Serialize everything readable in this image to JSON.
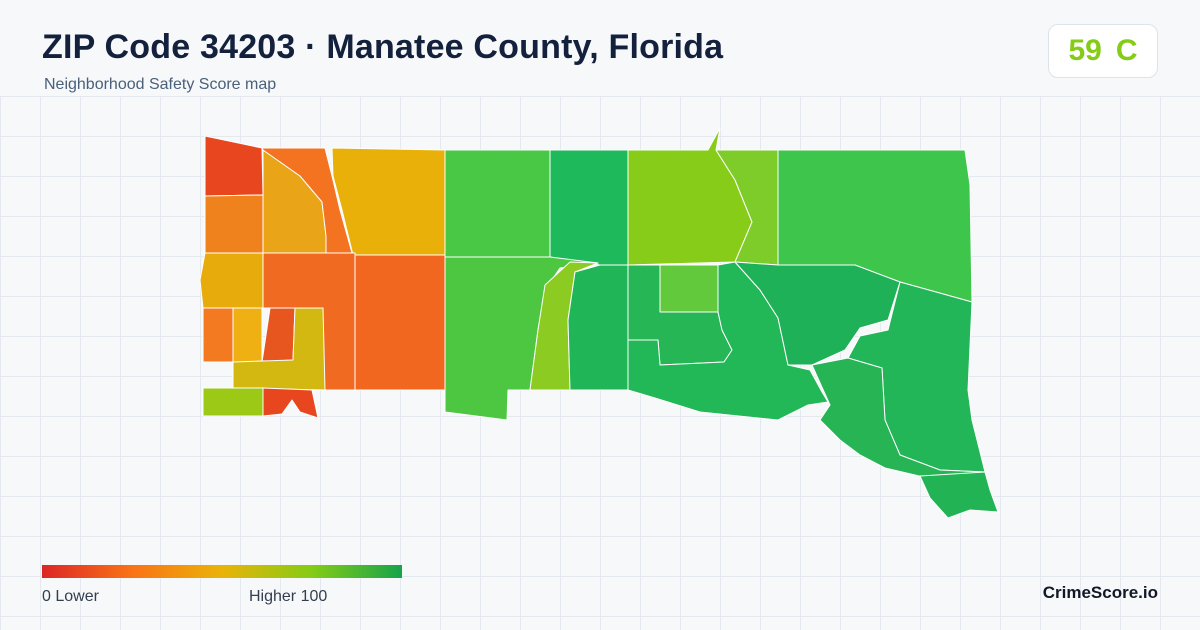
{
  "header": {
    "title": "ZIP Code 34203 · Manatee County, Florida",
    "subtitle": "Neighborhood Safety Score map"
  },
  "score": {
    "value": "59",
    "grade": "C",
    "color": "#84cc16"
  },
  "legend": {
    "min_label": "0  Lower",
    "max_label": "Higher  100",
    "gradient_colors": [
      "#dc2626",
      "#f97316",
      "#eab308",
      "#84cc16",
      "#16a34a"
    ]
  },
  "brand": "CrimeScore.io",
  "map": {
    "stroke_color": "#ffffff",
    "regions": [
      {
        "name": "region-nw-corner",
        "color": "#e8461e"
      },
      {
        "name": "region-west-upper",
        "color": "#f0821e"
      },
      {
        "name": "region-west-upper-inner",
        "color": "#e9a417"
      },
      {
        "name": "region-west-strip",
        "color": "#f47320"
      },
      {
        "name": "region-north-central-west",
        "color": "#e8b008"
      },
      {
        "name": "region-west-mid",
        "color": "#e7ac0c"
      },
      {
        "name": "region-west-lower",
        "color": "#f47a21"
      },
      {
        "name": "region-west-lower-inner",
        "color": "#eeb012"
      },
      {
        "name": "region-central-west",
        "color": "#f06a22"
      },
      {
        "name": "region-central-west-inner",
        "color": "#e8561f"
      },
      {
        "name": "region-central",
        "color": "#f2671f"
      },
      {
        "name": "region-south-ring",
        "color": "#d4b812"
      },
      {
        "name": "region-sw-corner",
        "color": "#9bc916"
      },
      {
        "name": "region-south-notch",
        "color": "#e8461e"
      },
      {
        "name": "region-north-center",
        "color": "#49c846"
      },
      {
        "name": "region-north-center-east",
        "color": "#1db95a"
      },
      {
        "name": "region-north-east-strip",
        "color": "#86cc18"
      },
      {
        "name": "region-north-east-sliver",
        "color": "#7dcc2a"
      },
      {
        "name": "region-north-east",
        "color": "#3ec64c"
      },
      {
        "name": "region-center-south",
        "color": "#4dc642"
      },
      {
        "name": "region-center-finger",
        "color": "#8ccb22"
      },
      {
        "name": "region-center-east",
        "color": "#20b658"
      },
      {
        "name": "region-center-east-inner",
        "color": "#62c83c"
      },
      {
        "name": "region-center-east-inner-2",
        "color": "#26b656"
      },
      {
        "name": "region-south-east-large",
        "color": "#22b757"
      },
      {
        "name": "region-east",
        "color": "#1fb158"
      },
      {
        "name": "region-east-upper",
        "color": "#23b658"
      },
      {
        "name": "region-south-east-lower",
        "color": "#26b455"
      },
      {
        "name": "region-south-east-tip",
        "color": "#22b454"
      }
    ]
  }
}
